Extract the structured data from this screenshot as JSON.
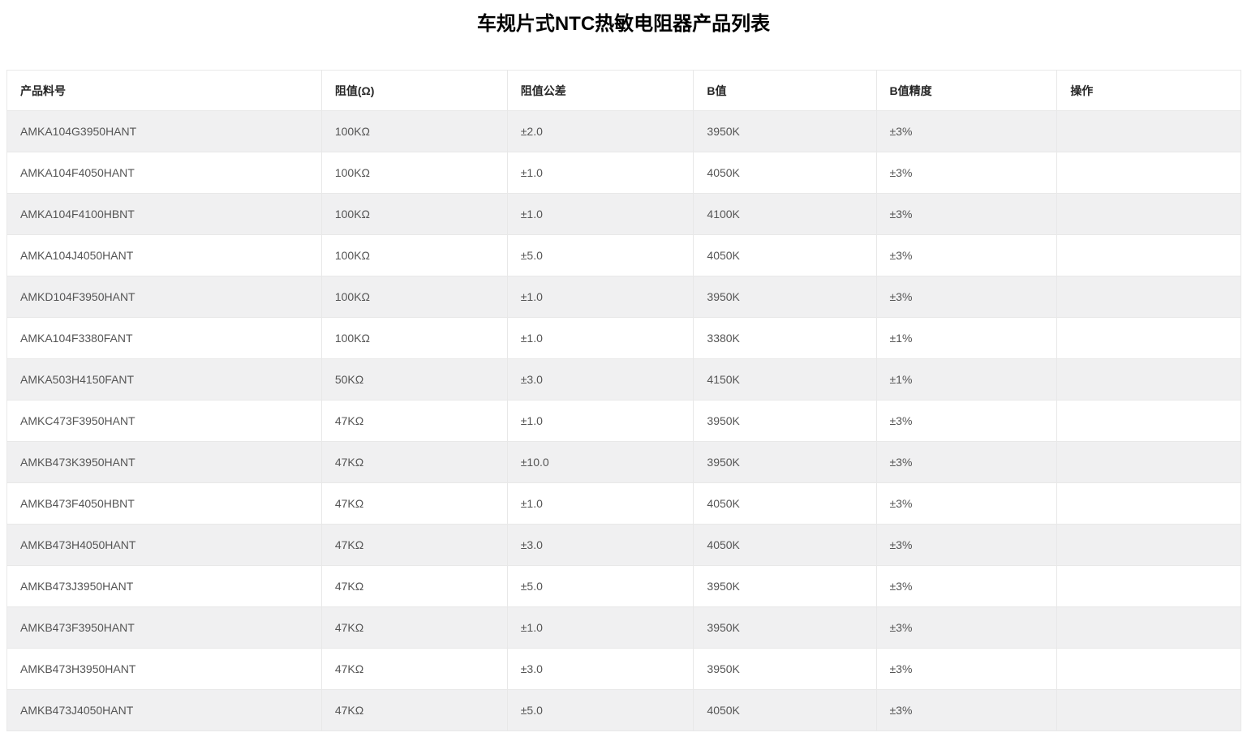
{
  "page": {
    "title": "车规片式NTC热敏电阻器产品列表"
  },
  "colors": {
    "striped_row_background": "#f0f0f1",
    "table_border": "#e8e8e8"
  },
  "table": {
    "columns": [
      {
        "key": "part-number",
        "label": "产品料号"
      },
      {
        "key": "resistance",
        "label": "阻值(Ω)"
      },
      {
        "key": "resistance-tolerance",
        "label": "阻值公差"
      },
      {
        "key": "b-value",
        "label": "B值"
      },
      {
        "key": "b-value-precision",
        "label": "B值精度"
      },
      {
        "key": "actions",
        "label": "操作"
      }
    ],
    "rows": [
      [
        "AMKA104G3950HANT",
        "100KΩ",
        "±2.0",
        "3950K",
        "±3%",
        ""
      ],
      [
        "AMKA104F4050HANT",
        "100KΩ",
        "±1.0",
        "4050K",
        "±3%",
        ""
      ],
      [
        "AMKA104F4100HBNT",
        "100KΩ",
        "±1.0",
        "4100K",
        "±3%",
        ""
      ],
      [
        "AMKA104J4050HANT",
        "100KΩ",
        "±5.0",
        "4050K",
        "±3%",
        ""
      ],
      [
        "AMKD104F3950HANT",
        "100KΩ",
        "±1.0",
        "3950K",
        "±3%",
        ""
      ],
      [
        "AMKA104F3380FANT",
        "100KΩ",
        "±1.0",
        "3380K",
        "±1%",
        ""
      ],
      [
        "AMKA503H4150FANT",
        "50KΩ",
        "±3.0",
        "4150K",
        "±1%",
        ""
      ],
      [
        "AMKC473F3950HANT",
        "47KΩ",
        "±1.0",
        "3950K",
        "±3%",
        ""
      ],
      [
        "AMKB473K3950HANT",
        "47KΩ",
        "±10.0",
        "3950K",
        "±3%",
        ""
      ],
      [
        "AMKB473F4050HBNT",
        "47KΩ",
        "±1.0",
        "4050K",
        "±3%",
        ""
      ],
      [
        "AMKB473H4050HANT",
        "47KΩ",
        "±3.0",
        "4050K",
        "±3%",
        ""
      ],
      [
        "AMKB473J3950HANT",
        "47KΩ",
        "±5.0",
        "3950K",
        "±3%",
        ""
      ],
      [
        "AMKB473F3950HANT",
        "47KΩ",
        "±1.0",
        "3950K",
        "±3%",
        ""
      ],
      [
        "AMKB473H3950HANT",
        "47KΩ",
        "±3.0",
        "3950K",
        "±3%",
        ""
      ],
      [
        "AMKB473J4050HANT",
        "47KΩ",
        "±5.0",
        "4050K",
        "±3%",
        ""
      ]
    ]
  }
}
